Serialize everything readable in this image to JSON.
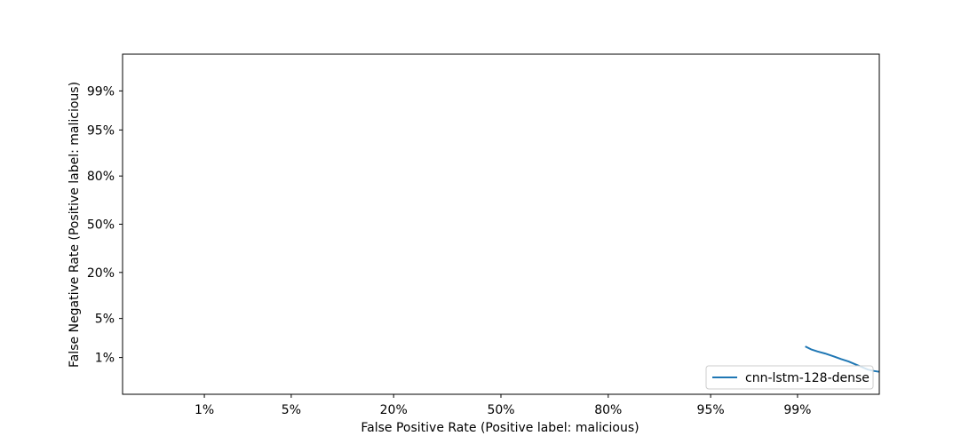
{
  "chart_data": {
    "type": "line",
    "title": "",
    "xlabel": "False Positive Rate (Positive label: malicious)",
    "ylabel": "False Negative Rate (Positive label: malicious)",
    "x_scale": "probit",
    "y_scale": "probit",
    "xlim": [
      0.0015,
      0.9985
    ],
    "ylim": [
      0.0015,
      0.9985
    ],
    "x_ticks": [
      0.01,
      0.05,
      0.2,
      0.5,
      0.8,
      0.95,
      0.99
    ],
    "x_tick_labels": [
      "1%",
      "5%",
      "20%",
      "50%",
      "80%",
      "95%",
      "99%"
    ],
    "y_ticks": [
      0.01,
      0.05,
      0.2,
      0.5,
      0.8,
      0.95,
      0.99
    ],
    "y_tick_labels": [
      "1%",
      "5%",
      "20%",
      "50%",
      "80%",
      "95%",
      "99%"
    ],
    "grid": false,
    "legend_position": "lower-right",
    "series": [
      {
        "name": "cnn-lstm-128-dense",
        "color": "#1f77b4",
        "x": [
          0.9915,
          0.9925,
          0.9935,
          0.9945,
          0.9955,
          0.9962,
          0.9968,
          0.9973,
          0.9977,
          0.998,
          0.9983,
          0.9985
        ],
        "y": [
          0.0165,
          0.0145,
          0.0132,
          0.012,
          0.0105,
          0.0093,
          0.0083,
          0.0072,
          0.0063,
          0.0056,
          0.0052,
          0.005
        ]
      }
    ]
  }
}
